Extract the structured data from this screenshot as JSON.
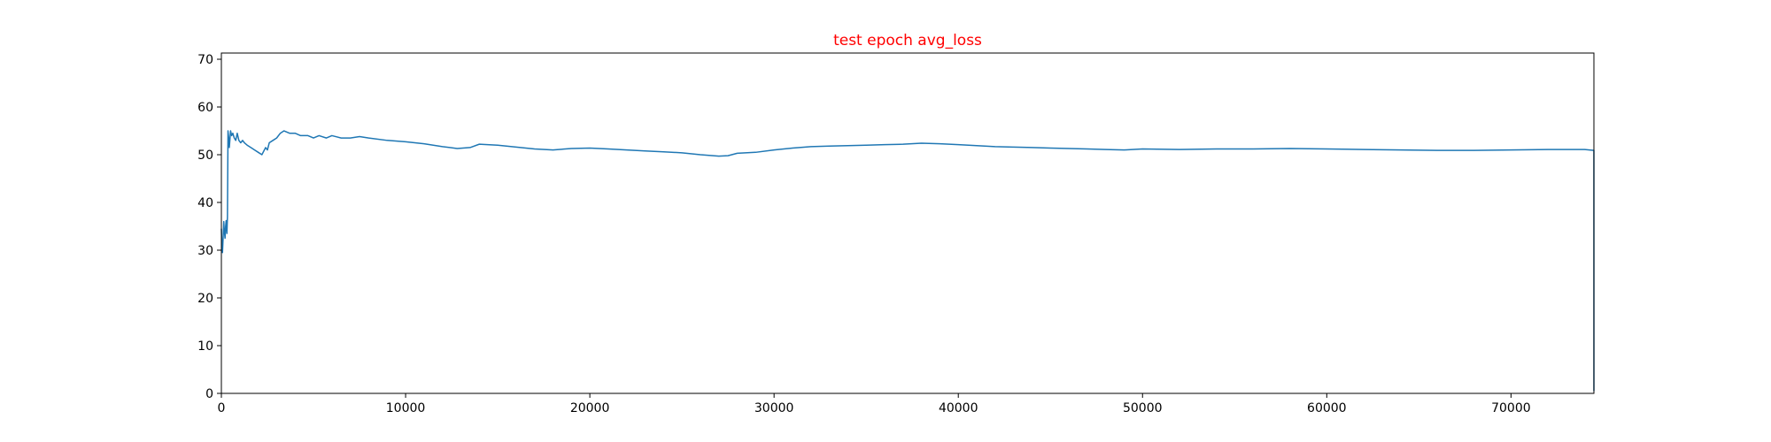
{
  "chart_data": {
    "type": "line",
    "title": "test epoch avg_loss",
    "title_color": "#ff0000",
    "xlabel": "",
    "ylabel": "",
    "xlim": [
      0,
      74500
    ],
    "ylim": [
      0,
      71.3
    ],
    "xticks": [
      0,
      10000,
      20000,
      30000,
      40000,
      50000,
      60000,
      70000
    ],
    "yticks": [
      0,
      10,
      20,
      30,
      40,
      50,
      60,
      70
    ],
    "grid": false,
    "series": [
      {
        "color": "#1f77b4",
        "x": [
          0,
          30,
          60,
          100,
          130,
          160,
          200,
          230,
          260,
          300,
          330,
          360,
          400,
          430,
          500,
          560,
          620,
          700,
          780,
          860,
          950,
          1050,
          1150,
          1250,
          1400,
          1600,
          1800,
          2000,
          2200,
          2400,
          2500,
          2600,
          2800,
          3000,
          3200,
          3400,
          3700,
          4000,
          4300,
          4700,
          5000,
          5300,
          5700,
          6000,
          6500,
          7000,
          7500,
          8000,
          9000,
          10000,
          11000,
          12000,
          12800,
          13500,
          14000,
          15000,
          16000,
          17000,
          18000,
          19000,
          20000,
          21000,
          22000,
          23000,
          24000,
          25000,
          26000,
          27000,
          27500,
          28000,
          29000,
          30000,
          31000,
          32000,
          33000,
          34000,
          35000,
          36000,
          37000,
          38000,
          39000,
          40000,
          41000,
          42000,
          43000,
          44000,
          45000,
          46000,
          47000,
          48000,
          49000,
          50000,
          52000,
          54000,
          56000,
          58000,
          60000,
          62000,
          64000,
          66000,
          68000,
          70000,
          72000,
          74000,
          74499,
          74500
        ],
        "y": [
          34.5,
          31.0,
          29.5,
          33.0,
          36.0,
          34.0,
          32.5,
          35.0,
          36.2,
          33.5,
          37.0,
          55.0,
          53.5,
          51.5,
          55.0,
          54.0,
          54.5,
          53.5,
          53.0,
          54.5,
          53.0,
          52.5,
          53.0,
          52.5,
          52.0,
          51.5,
          51.0,
          50.5,
          50.0,
          51.5,
          51.0,
          52.5,
          53.0,
          53.5,
          54.5,
          55.0,
          54.5,
          54.5,
          54.0,
          54.0,
          53.5,
          54.0,
          53.5,
          54.0,
          53.5,
          53.5,
          53.8,
          53.5,
          53.0,
          52.7,
          52.3,
          51.7,
          51.3,
          51.5,
          52.2,
          52.0,
          51.6,
          51.2,
          51.0,
          51.3,
          51.4,
          51.2,
          51.0,
          50.8,
          50.6,
          50.4,
          50.0,
          49.7,
          49.8,
          50.3,
          50.5,
          51.0,
          51.4,
          51.7,
          51.8,
          51.9,
          52.0,
          52.1,
          52.2,
          52.4,
          52.3,
          52.1,
          51.9,
          51.7,
          51.6,
          51.5,
          51.4,
          51.3,
          51.2,
          51.1,
          51.0,
          51.2,
          51.1,
          51.2,
          51.2,
          51.3,
          51.2,
          51.1,
          51.0,
          50.9,
          50.9,
          51.0,
          51.1,
          51.1,
          50.9,
          0.5
        ]
      }
    ]
  }
}
